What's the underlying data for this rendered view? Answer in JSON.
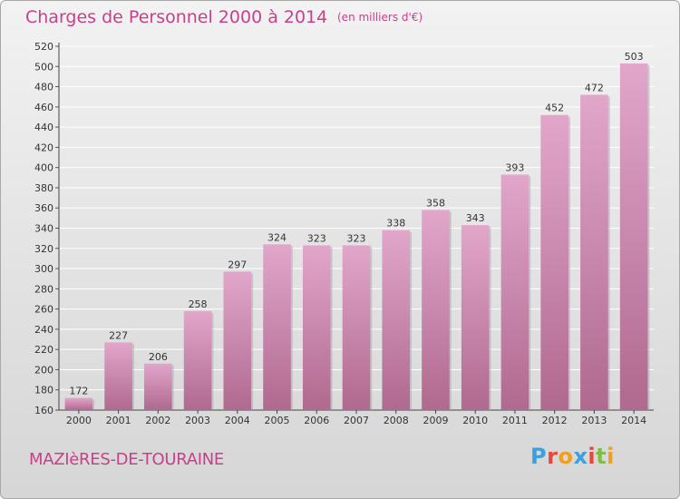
{
  "title": "Charges de Personnel 2000 à 2014",
  "subtitle": "(en milliers d'€)",
  "place": "MAZIèRES-DE-TOURAINE",
  "logo": {
    "text": "Proxiti",
    "colors": [
      "#3aa0e0",
      "#e8483a",
      "#f0a020",
      "#3aa0e0",
      "#e8483a",
      "#7cc040",
      "#f0a020"
    ]
  },
  "colors": {
    "bar_top": "#e2a6cb",
    "bar_bottom": "#b0698f",
    "accent": "#c8408a",
    "grid": "#ffffff"
  },
  "chart_data": {
    "type": "bar",
    "title": "Charges de Personnel 2000 à 2014",
    "xlabel": "",
    "ylabel": "",
    "categories": [
      "2000",
      "2001",
      "2002",
      "2003",
      "2004",
      "2005",
      "2006",
      "2007",
      "2008",
      "2009",
      "2010",
      "2011",
      "2012",
      "2013",
      "2014"
    ],
    "values": [
      172,
      227,
      206,
      258,
      297,
      324,
      323,
      323,
      338,
      358,
      343,
      393,
      452,
      472,
      503
    ],
    "ylim": [
      160,
      520
    ],
    "yticks": [
      160,
      180,
      200,
      220,
      240,
      260,
      280,
      300,
      320,
      340,
      360,
      380,
      400,
      420,
      440,
      460,
      480,
      500,
      520
    ],
    "grid": true,
    "data_labels": true
  }
}
